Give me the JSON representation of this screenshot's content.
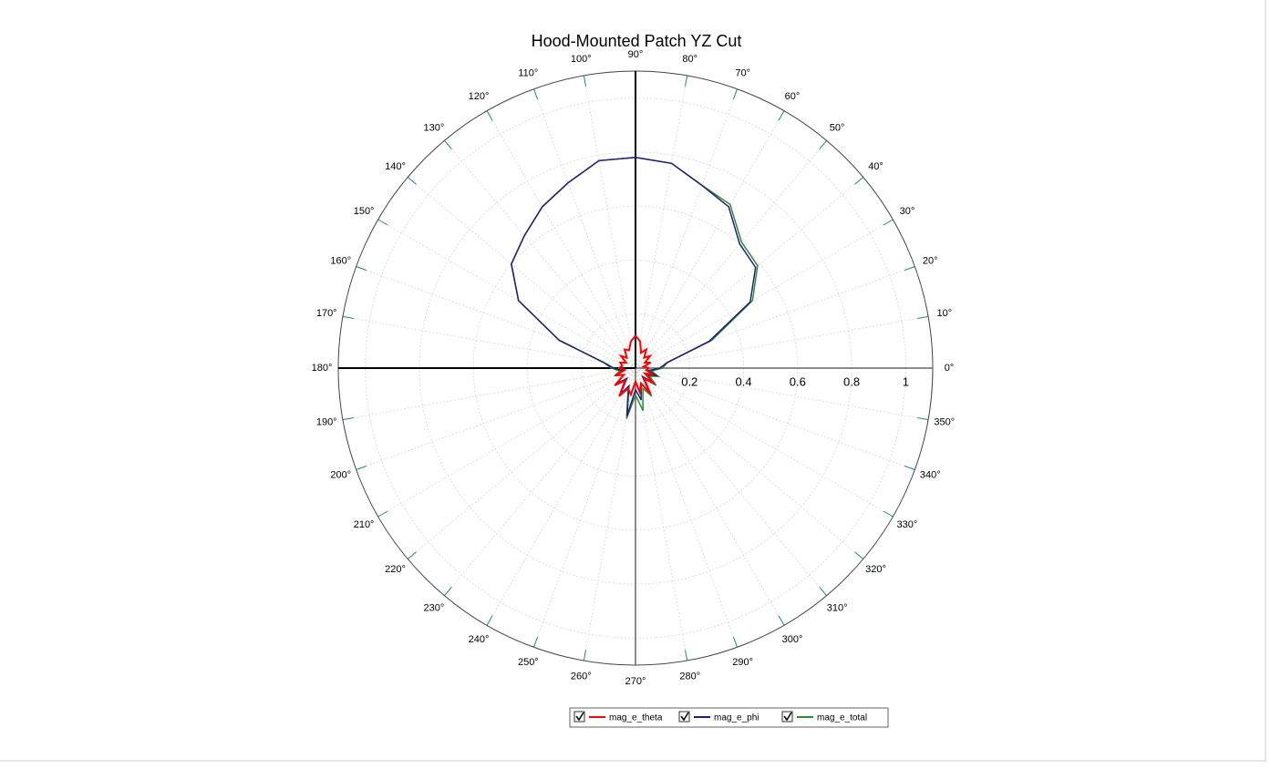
{
  "chart_data": {
    "type": "polar",
    "title": "Hood-Mounted Patch YZ Cut",
    "theta": [
      0,
      10,
      20,
      30,
      40,
      50,
      60,
      70,
      80,
      90,
      100,
      110,
      120,
      130,
      140,
      150,
      160,
      170,
      180,
      190,
      200,
      210,
      220,
      230,
      240,
      250,
      260,
      270,
      280,
      290,
      300,
      310,
      320,
      330,
      340,
      350,
      360
    ],
    "series": [
      {
        "name": "mag_e_theta",
        "color": "#ff0000",
        "values": [
          0.05,
          0.03,
          0.06,
          0.04,
          0.07,
          0.05,
          0.08,
          0.06,
          0.1,
          0.12,
          0.1,
          0.07,
          0.08,
          0.05,
          0.07,
          0.04,
          0.06,
          0.05,
          0.06,
          0.04,
          0.08,
          0.05,
          0.1,
          0.06,
          0.12,
          0.08,
          0.1,
          0.05,
          0.09,
          0.06,
          0.11,
          0.05,
          0.09,
          0.04,
          0.07,
          0.04,
          0.05
        ]
      },
      {
        "name": "mag_e_phi",
        "color": "#1f1f7a",
        "values": [
          0.09,
          0.12,
          0.29,
          0.49,
          0.58,
          0.6,
          0.69,
          0.72,
          0.77,
          0.78,
          0.78,
          0.73,
          0.69,
          0.64,
          0.6,
          0.5,
          0.3,
          0.12,
          0.08,
          0.05,
          0.07,
          0.05,
          0.09,
          0.05,
          0.11,
          0.07,
          0.18,
          0.08,
          0.12,
          0.06,
          0.1,
          0.04,
          0.08,
          0.05,
          0.08,
          0.05,
          0.09
        ]
      },
      {
        "name": "mag_e_total",
        "color": "#2e8b2e",
        "values": [
          0.1,
          0.12,
          0.3,
          0.5,
          0.59,
          0.61,
          0.7,
          0.72,
          0.77,
          0.78,
          0.78,
          0.73,
          0.69,
          0.64,
          0.6,
          0.5,
          0.3,
          0.12,
          0.09,
          0.06,
          0.08,
          0.05,
          0.1,
          0.06,
          0.12,
          0.08,
          0.19,
          0.1,
          0.16,
          0.08,
          0.12,
          0.05,
          0.1,
          0.06,
          0.09,
          0.06,
          0.1
        ]
      }
    ],
    "rlim": [
      0,
      1.1
    ],
    "rticks": [
      0.2,
      0.4,
      0.6,
      0.8,
      1
    ],
    "thetaticks": [
      {
        "value": 0,
        "label": "0°"
      },
      {
        "value": 10,
        "label": "10°"
      },
      {
        "value": 20,
        "label": "20°"
      },
      {
        "value": 30,
        "label": "30°"
      },
      {
        "value": 40,
        "label": "40°"
      },
      {
        "value": 50,
        "label": "50°"
      },
      {
        "value": 60,
        "label": "60°"
      },
      {
        "value": 70,
        "label": "70°"
      },
      {
        "value": 80,
        "label": "80°"
      },
      {
        "value": 90,
        "label": "90°"
      },
      {
        "value": 100,
        "label": "100°"
      },
      {
        "value": 110,
        "label": "110°"
      },
      {
        "value": 120,
        "label": "120°"
      },
      {
        "value": 130,
        "label": "130°"
      },
      {
        "value": 140,
        "label": "140°"
      },
      {
        "value": 150,
        "label": "150°"
      },
      {
        "value": 160,
        "label": "160°"
      },
      {
        "value": 170,
        "label": "170°"
      },
      {
        "value": 180,
        "label": "180°"
      },
      {
        "value": 190,
        "label": "190°"
      },
      {
        "value": 200,
        "label": "200°"
      },
      {
        "value": 210,
        "label": "210°"
      },
      {
        "value": 220,
        "label": "220°"
      },
      {
        "value": 230,
        "label": "230°"
      },
      {
        "value": 240,
        "label": "240°"
      },
      {
        "value": 250,
        "label": "250°"
      },
      {
        "value": 260,
        "label": "260°"
      },
      {
        "value": 270,
        "label": "270°"
      },
      {
        "value": 280,
        "label": "280°"
      },
      {
        "value": 290,
        "label": "290°"
      },
      {
        "value": 300,
        "label": "300°"
      },
      {
        "value": 310,
        "label": "310°"
      },
      {
        "value": 320,
        "label": "320°"
      },
      {
        "value": 330,
        "label": "330°"
      },
      {
        "value": 340,
        "label": "340°"
      },
      {
        "value": 350,
        "label": "350°"
      }
    ],
    "grid": true
  }
}
